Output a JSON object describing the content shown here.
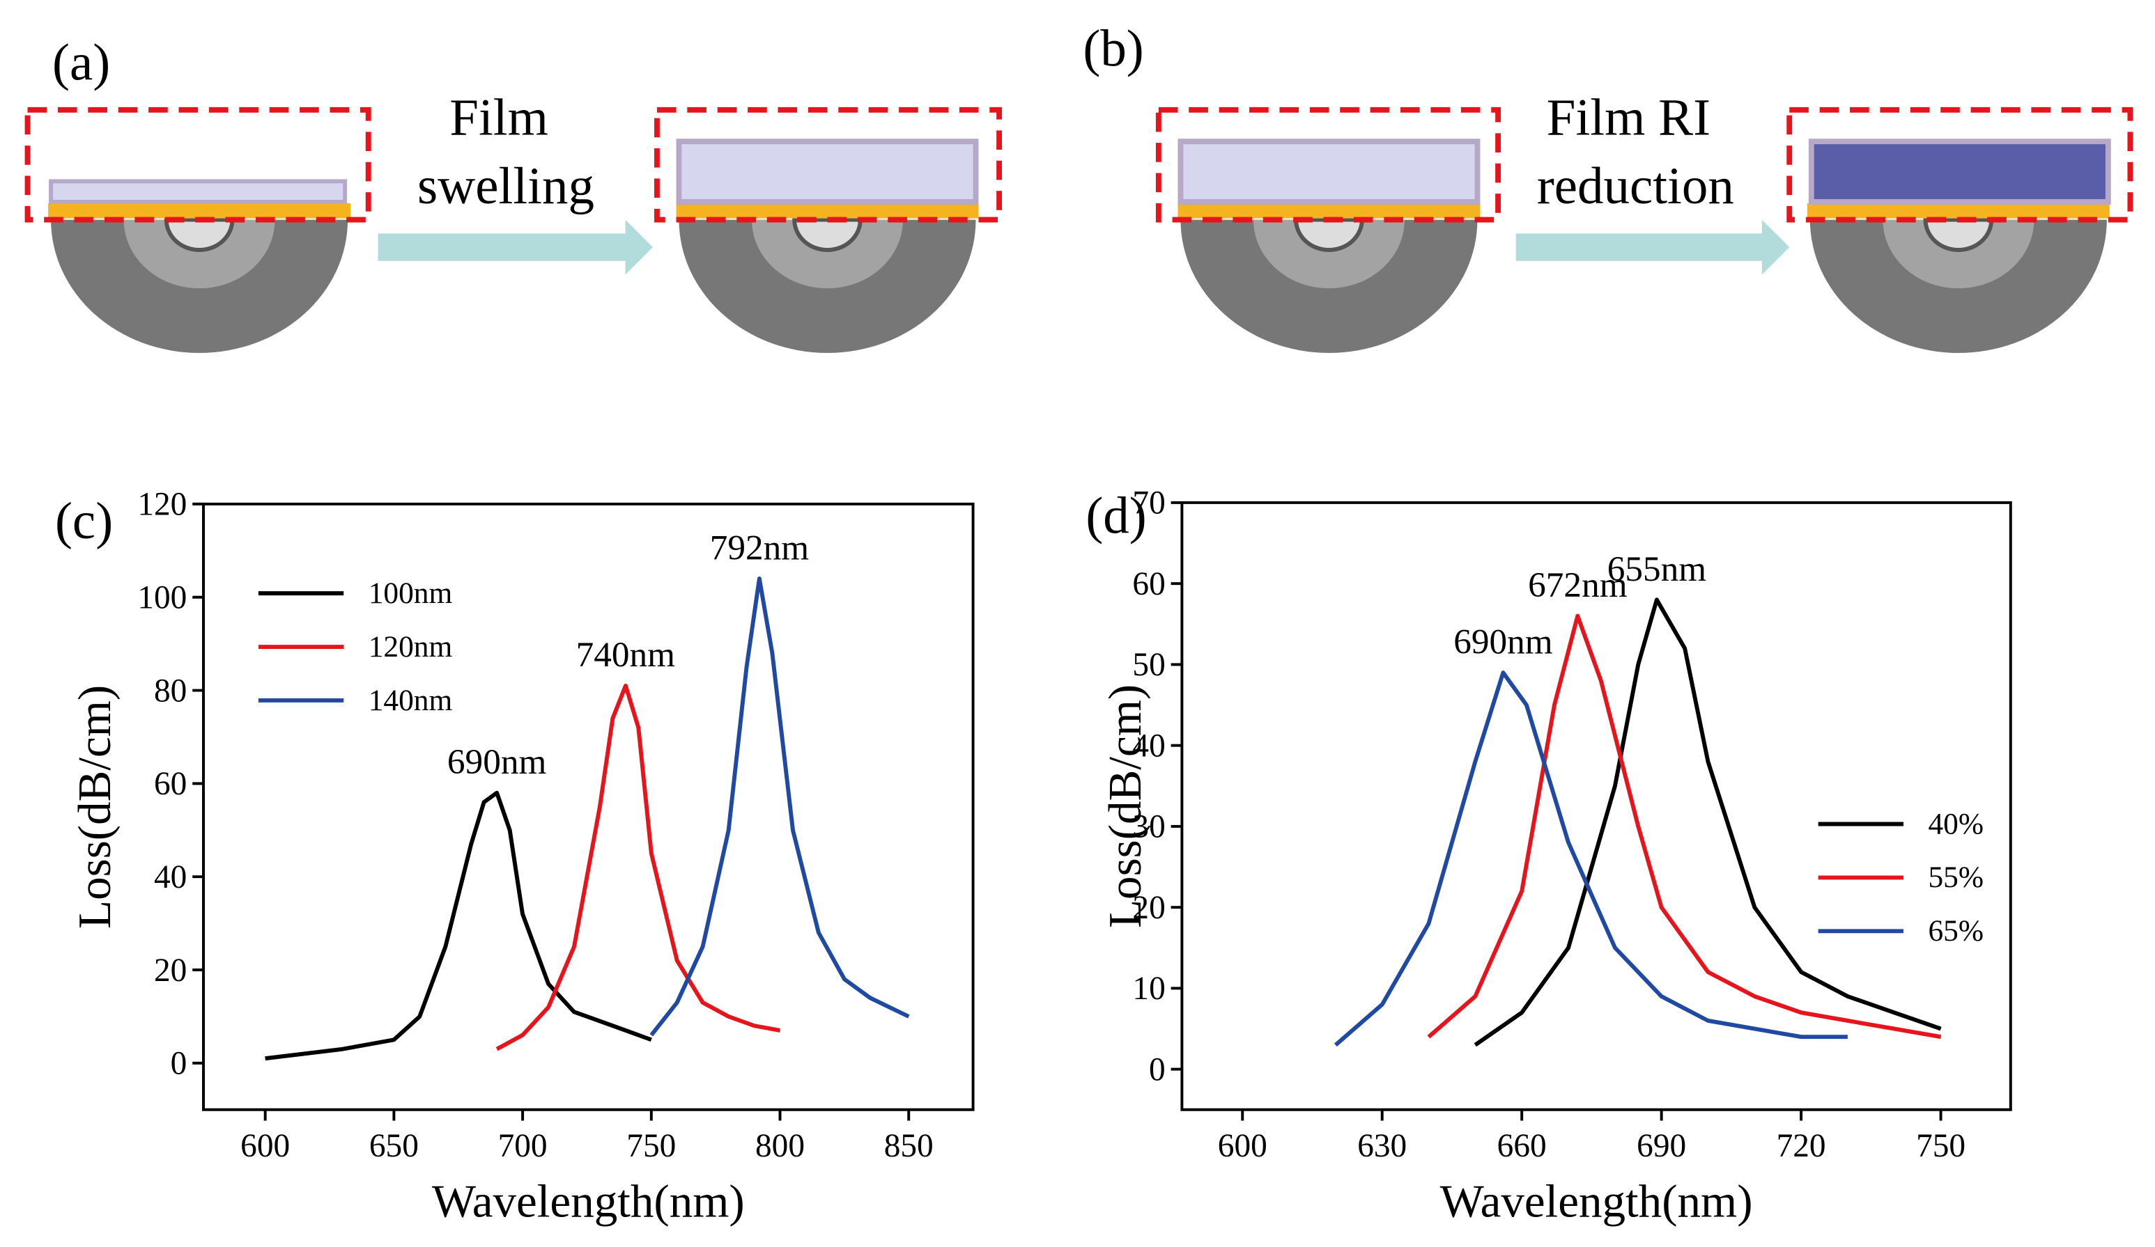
{
  "diagrams": [
    {
      "label": "(a)",
      "caption": [
        "Film",
        "swelling"
      ]
    },
    {
      "label": "(b)",
      "caption": [
        "Film RI",
        "reduction"
      ]
    }
  ],
  "chart_data": [
    {
      "type": "line",
      "label": "(c)",
      "xlabel": "Wavelength(nm)",
      "ylabel": "Loss(dB/cm)",
      "xlim": [
        576,
        875
      ],
      "xticks": [
        600,
        650,
        700,
        750,
        800,
        850
      ],
      "ylim": [
        -10,
        120
      ],
      "yticks": [
        0,
        20,
        40,
        60,
        80,
        100,
        120
      ],
      "legend": "upper left",
      "series": [
        {
          "name": "100nm",
          "color": "#000000",
          "x": [
            600,
            630,
            650,
            660,
            670,
            680,
            685,
            690,
            695,
            700,
            710,
            720,
            730,
            740,
            750
          ],
          "values": [
            1,
            3,
            5,
            10,
            25,
            47,
            56,
            58,
            50,
            32,
            17,
            11,
            9,
            7,
            5
          ]
        },
        {
          "name": "120nm",
          "color": "#e8141c",
          "x": [
            690,
            700,
            710,
            720,
            730,
            735,
            740,
            745,
            750,
            760,
            770,
            780,
            790,
            800
          ],
          "values": [
            3,
            6,
            12,
            25,
            55,
            74,
            81,
            72,
            45,
            22,
            13,
            10,
            8,
            7
          ]
        },
        {
          "name": "140nm",
          "color": "#1f49a3",
          "x": [
            750,
            760,
            770,
            780,
            787,
            792,
            797,
            805,
            815,
            825,
            835,
            850
          ],
          "values": [
            6,
            13,
            25,
            50,
            85,
            104,
            88,
            50,
            28,
            18,
            14,
            10
          ]
        }
      ],
      "annotations": [
        "690nm",
        "740nm",
        "792nm"
      ]
    },
    {
      "type": "line",
      "label": "(d)",
      "xlabel": "Wavelength(nm)",
      "ylabel": "Loss(dB/cm)",
      "xlim": [
        587,
        765
      ],
      "xticks": [
        600,
        630,
        660,
        690,
        720,
        750
      ],
      "ylim": [
        -5,
        70
      ],
      "yticks": [
        0,
        10,
        20,
        30,
        40,
        50,
        60,
        70
      ],
      "legend": "lower right",
      "series": [
        {
          "name": "40%",
          "color": "#000000",
          "x": [
            650,
            660,
            670,
            680,
            685,
            689,
            695,
            700,
            710,
            720,
            730,
            740,
            750
          ],
          "values": [
            3,
            7,
            15,
            35,
            50,
            58,
            52,
            38,
            20,
            12,
            9,
            7,
            5
          ]
        },
        {
          "name": "55%",
          "color": "#e8141c",
          "x": [
            640,
            650,
            660,
            667,
            672,
            677,
            685,
            690,
            700,
            710,
            720,
            730,
            740,
            750
          ],
          "values": [
            4,
            9,
            22,
            45,
            56,
            48,
            30,
            20,
            12,
            9,
            7,
            6,
            5,
            4
          ]
        },
        {
          "name": "65%",
          "color": "#1f49a3",
          "x": [
            620,
            630,
            640,
            650,
            656,
            661,
            670,
            680,
            690,
            700,
            710,
            720,
            730
          ],
          "values": [
            3,
            8,
            18,
            38,
            49,
            45,
            28,
            15,
            9,
            6,
            5,
            4,
            4
          ]
        }
      ],
      "annotations": [
        "655nm",
        "672nm",
        "690nm"
      ]
    }
  ]
}
